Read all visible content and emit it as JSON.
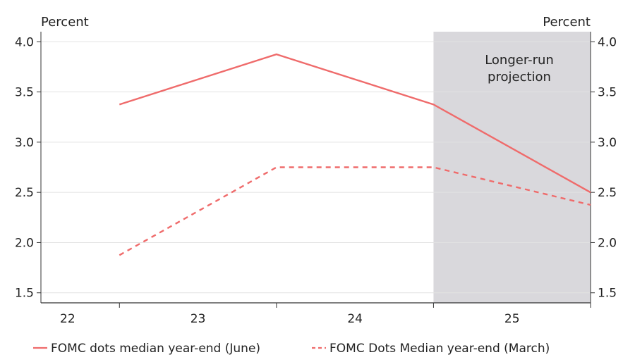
{
  "chart_data": {
    "type": "line",
    "x_tick_labels": [
      "22",
      "23",
      "24",
      "25"
    ],
    "x": [
      2022.5,
      2023.5,
      2024.5,
      2025.5
    ],
    "left_axis_label": "Percent",
    "right_axis_label": "Percent",
    "ylim": [
      1.4,
      4.1
    ],
    "y_ticks": [
      1.5,
      2.0,
      2.5,
      3.0,
      3.5,
      4.0
    ],
    "y_tick_labels": [
      "1.5",
      "2.0",
      "2.5",
      "3.0",
      "3.5",
      "4.0"
    ],
    "grid": true,
    "series": [
      {
        "name": "FOMC dots median year-end (June)",
        "style": "solid",
        "color": "#ef6b6b",
        "values": [
          3.375,
          3.875,
          3.375,
          2.5
        ]
      },
      {
        "name": "FOMC Dots Median year-end (March)",
        "style": "dashed",
        "color": "#ef6b6b",
        "values": [
          1.875,
          2.75,
          2.75,
          2.375
        ]
      }
    ],
    "shaded_region": {
      "label_line1": "Longer-run",
      "label_line2": "projection",
      "x_range": [
        2024.5,
        2025.5
      ],
      "color": "#d9d8dc"
    },
    "legend_position": "bottom"
  }
}
